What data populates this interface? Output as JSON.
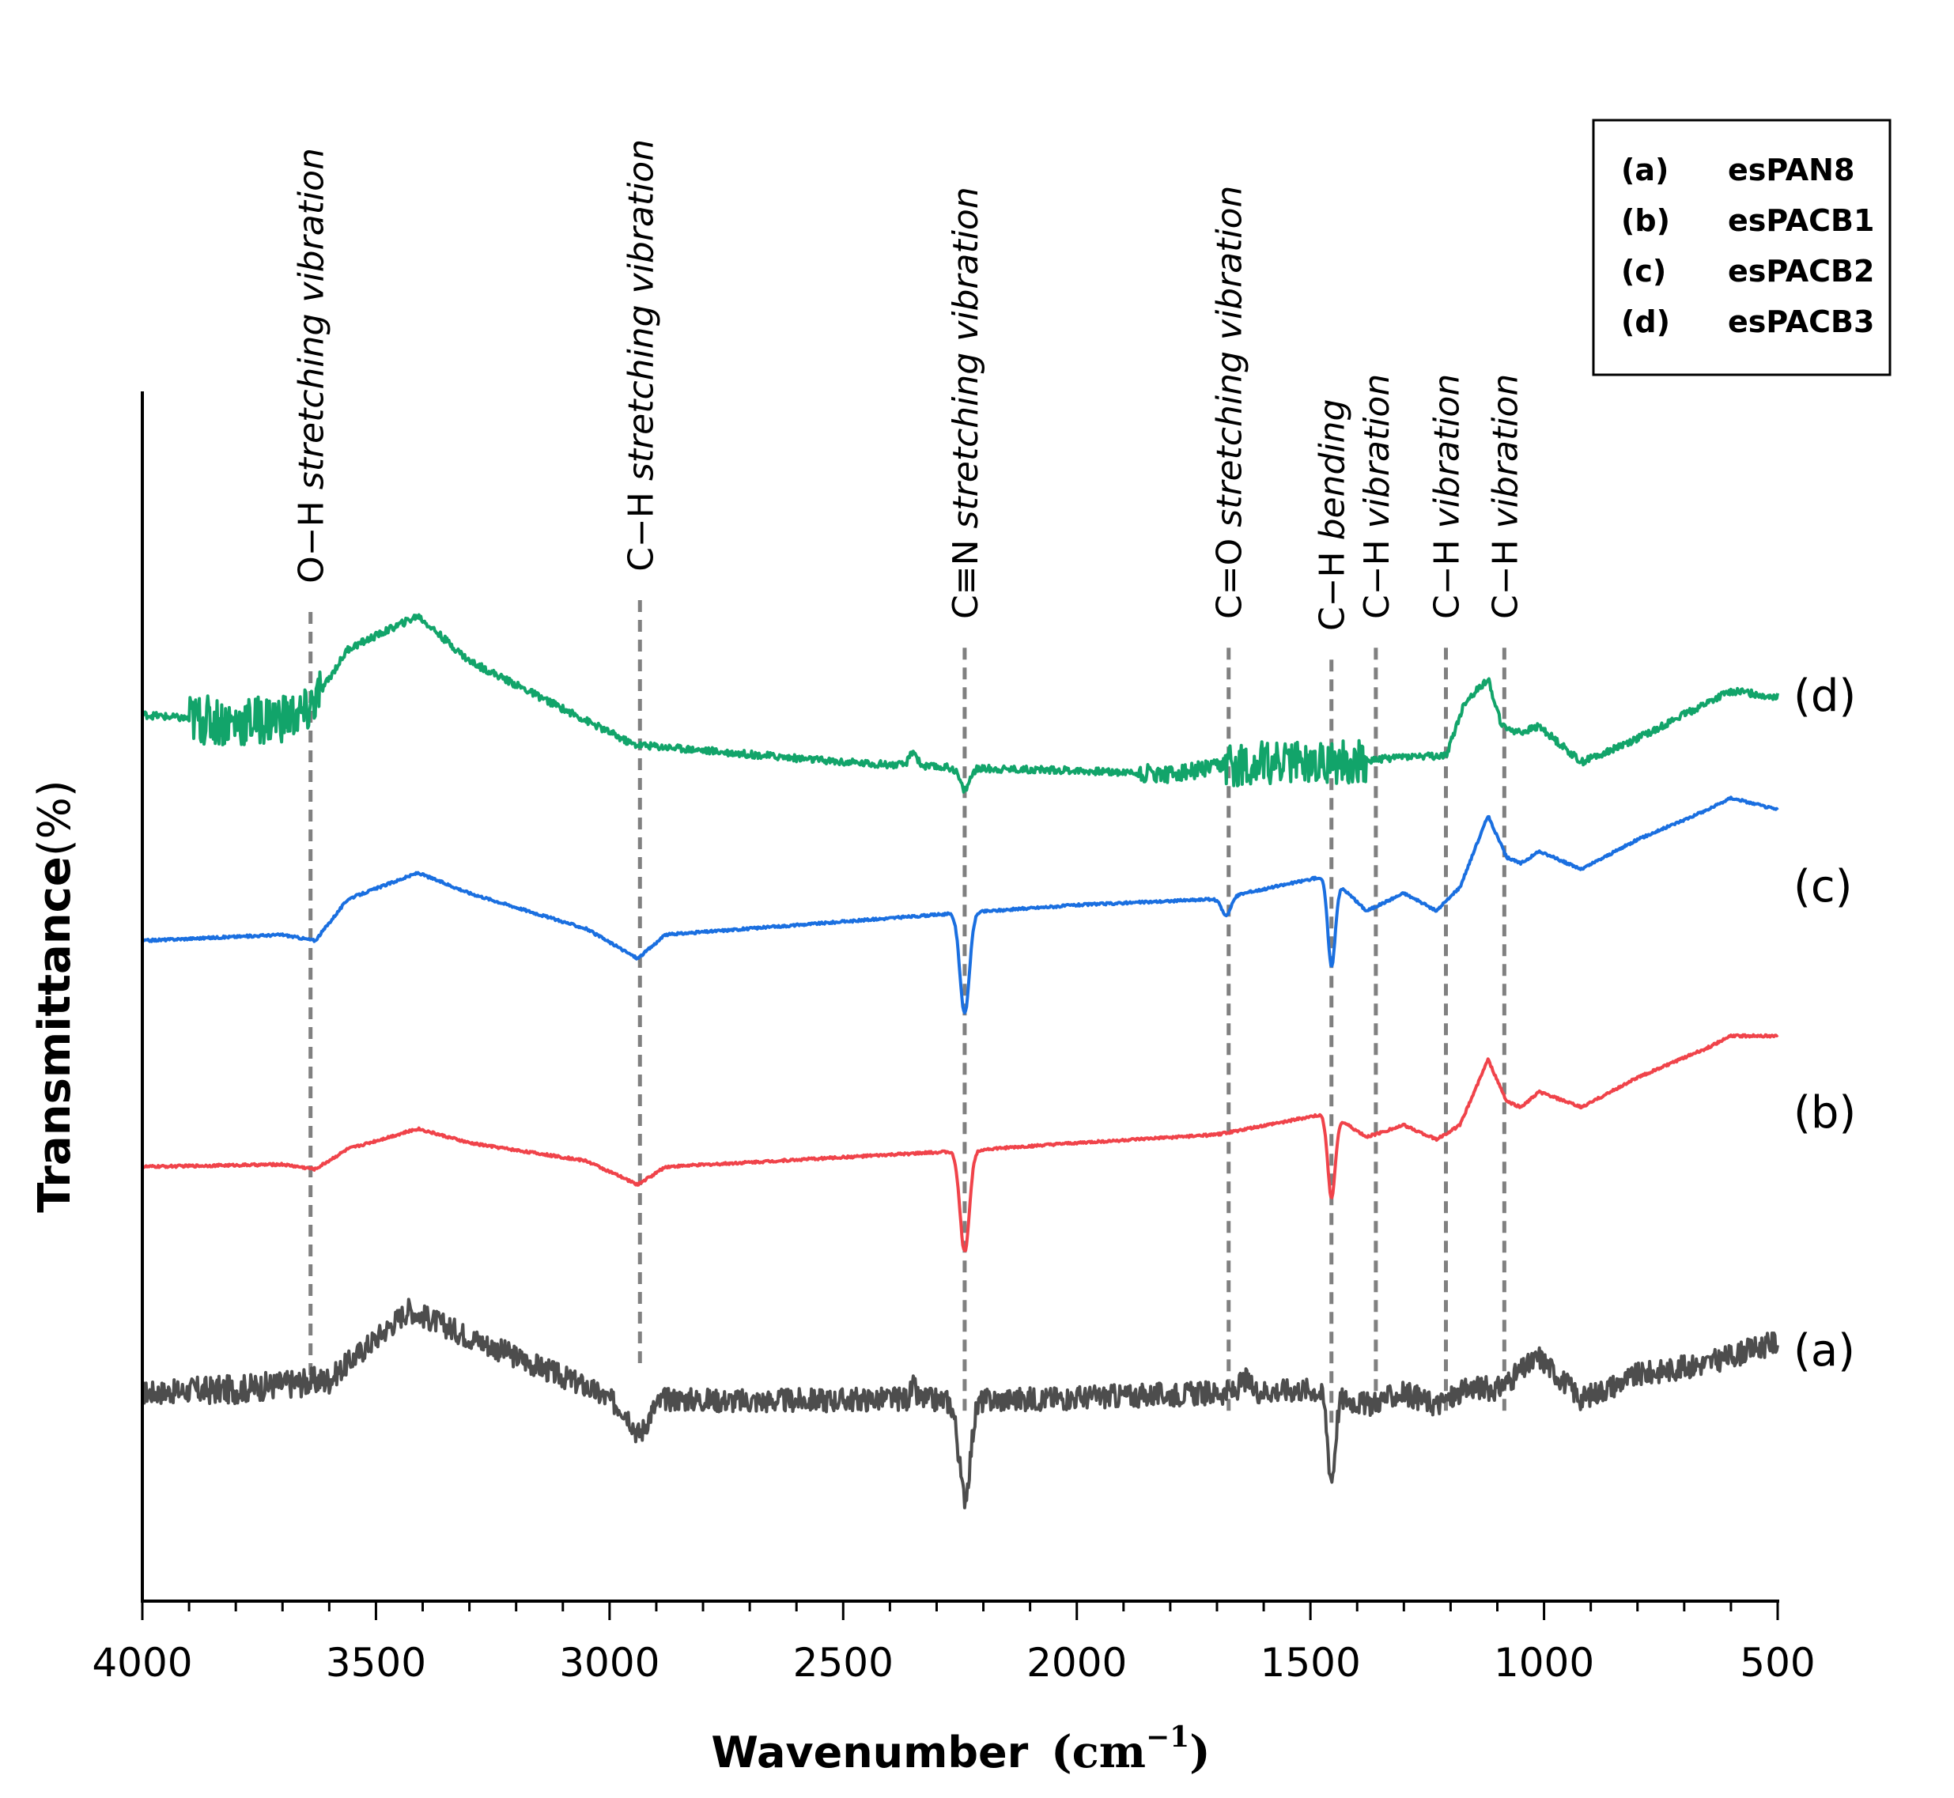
{
  "chart_data": {
    "type": "line",
    "title": "",
    "xlabel": "Wavenumber",
    "xlabel_unit_base": "cm",
    "xlabel_unit_exp": "−1",
    "ylabel": "Transmittance",
    "ylabel_unit": "(%)",
    "xlim": [
      4000,
      500
    ],
    "xticks": [
      4000,
      3500,
      3000,
      2500,
      2000,
      1500,
      1000,
      500
    ],
    "ylim": [
      0,
      1
    ],
    "grid": false,
    "legend_position": "top-right",
    "legend": [
      {
        "key": "(a)",
        "name": "esPAN8"
      },
      {
        "key": "(b)",
        "name": "esPACB1"
      },
      {
        "key": "(c)",
        "name": "esPACB2"
      },
      {
        "key": "(d)",
        "name": "esPACB3"
      }
    ],
    "series": [
      {
        "name": "esPAN8",
        "tag": "(a)",
        "color": "#4d4d4d",
        "baseline": 0.175,
        "noise": 0.01,
        "noise_bands": [
          [
            3900,
            3600,
            1.2
          ],
          [
            1700,
            1450,
            1.0
          ]
        ],
        "points": [
          [
            4000,
            0.175
          ],
          [
            3800,
            0.178
          ],
          [
            3600,
            0.186
          ],
          [
            3430,
            0.245
          ],
          [
            3300,
            0.222
          ],
          [
            3050,
            0.18
          ],
          [
            2940,
            0.155
          ],
          [
            2880,
            0.17
          ],
          [
            2700,
            0.168
          ],
          [
            2360,
            0.17
          ],
          [
            2250,
            0.168
          ],
          [
            2000,
            0.171
          ],
          [
            1700,
            0.175
          ],
          [
            1500,
            0.178
          ],
          [
            1380,
            0.165
          ],
          [
            1300,
            0.175
          ],
          [
            1230,
            0.165
          ],
          [
            1150,
            0.18
          ],
          [
            1100,
            0.178
          ],
          [
            1010,
            0.205
          ],
          [
            920,
            0.17
          ],
          [
            800,
            0.19
          ],
          [
            650,
            0.2
          ],
          [
            500,
            0.218
          ]
        ],
        "peaks": [
          [
            2240,
            -0.08,
            12
          ],
          [
            1455,
            -0.07,
            8
          ],
          [
            2935,
            -0.015,
            15
          ],
          [
            2350,
            0.01,
            5
          ],
          [
            1640,
            0.01,
            10
          ]
        ]
      },
      {
        "name": "esPACB1",
        "tag": "(b)",
        "color": "#f0434a",
        "baseline": 0.365,
        "noise": 0.001,
        "noise_bands": [],
        "points": [
          [
            4000,
            0.365
          ],
          [
            3700,
            0.367
          ],
          [
            3630,
            0.363
          ],
          [
            3560,
            0.38
          ],
          [
            3410,
            0.397
          ],
          [
            3300,
            0.385
          ],
          [
            3050,
            0.37
          ],
          [
            2940,
            0.35
          ],
          [
            2880,
            0.365
          ],
          [
            2260,
            0.378
          ],
          [
            2000,
            0.385
          ],
          [
            1700,
            0.392
          ],
          [
            1460,
            0.41
          ],
          [
            1380,
            0.39
          ],
          [
            1300,
            0.4
          ],
          [
            1230,
            0.388
          ],
          [
            1180,
            0.4
          ],
          [
            1120,
            0.455
          ],
          [
            1080,
            0.42
          ],
          [
            1050,
            0.415
          ],
          [
            1010,
            0.428
          ],
          [
            920,
            0.415
          ],
          [
            800,
            0.44
          ],
          [
            650,
            0.465
          ],
          [
            600,
            0.475
          ],
          [
            500,
            0.475
          ]
        ],
        "peaks": [
          [
            2240,
            -0.085,
            10
          ],
          [
            1455,
            -0.07,
            8
          ]
        ]
      },
      {
        "name": "esPACB2",
        "tag": "(c)",
        "color": "#1a6fe0",
        "baseline": 0.555,
        "noise": 0.001,
        "noise_bands": [],
        "points": [
          [
            4000,
            0.555
          ],
          [
            3700,
            0.56
          ],
          [
            3630,
            0.555
          ],
          [
            3560,
            0.59
          ],
          [
            3410,
            0.612
          ],
          [
            3300,
            0.595
          ],
          [
            3050,
            0.565
          ],
          [
            2940,
            0.54
          ],
          [
            2880,
            0.56
          ],
          [
            2260,
            0.578
          ],
          [
            2000,
            0.585
          ],
          [
            1700,
            0.59
          ],
          [
            1460,
            0.61
          ],
          [
            1380,
            0.58
          ],
          [
            1300,
            0.595
          ],
          [
            1230,
            0.58
          ],
          [
            1180,
            0.6
          ],
          [
            1120,
            0.66
          ],
          [
            1080,
            0.625
          ],
          [
            1050,
            0.62
          ],
          [
            1010,
            0.63
          ],
          [
            920,
            0.615
          ],
          [
            800,
            0.64
          ],
          [
            650,
            0.665
          ],
          [
            600,
            0.675
          ],
          [
            500,
            0.665
          ]
        ],
        "peaks": [
          [
            2240,
            -0.085,
            10
          ],
          [
            1455,
            -0.075,
            8
          ],
          [
            1680,
            -0.015,
            10
          ]
        ]
      },
      {
        "name": "esPACB3",
        "tag": "(d)",
        "color": "#12a46a",
        "baseline": 0.745,
        "noise": 0.003,
        "noise_bands": [
          [
            3900,
            3620,
            7
          ],
          [
            1690,
            1380,
            6
          ],
          [
            1870,
            1690,
            2.5
          ]
        ],
        "points": [
          [
            4000,
            0.745
          ],
          [
            3800,
            0.738
          ],
          [
            3650,
            0.745
          ],
          [
            3560,
            0.8
          ],
          [
            3410,
            0.828
          ],
          [
            3300,
            0.79
          ],
          [
            3100,
            0.75
          ],
          [
            2950,
            0.72
          ],
          [
            2800,
            0.715
          ],
          [
            2500,
            0.705
          ],
          [
            2250,
            0.7
          ],
          [
            2000,
            0.698
          ],
          [
            1800,
            0.695
          ],
          [
            1700,
            0.7
          ],
          [
            1600,
            0.705
          ],
          [
            1400,
            0.705
          ],
          [
            1300,
            0.71
          ],
          [
            1210,
            0.71
          ],
          [
            1170,
            0.755
          ],
          [
            1120,
            0.775
          ],
          [
            1090,
            0.735
          ],
          [
            1050,
            0.73
          ],
          [
            1010,
            0.735
          ],
          [
            920,
            0.705
          ],
          [
            800,
            0.725
          ],
          [
            650,
            0.755
          ],
          [
            600,
            0.765
          ],
          [
            500,
            0.76
          ]
        ],
        "peaks": [
          [
            2240,
            -0.018,
            10
          ],
          [
            2350,
            0.012,
            8
          ]
        ]
      }
    ],
    "series_labels": [
      {
        "text": "(a)",
        "y": 0.21
      },
      {
        "text": "(b)",
        "y": 0.41
      },
      {
        "text": "(c)",
        "y": 0.6
      },
      {
        "text": "(d)",
        "y": 0.76
      }
    ],
    "annotations": [
      {
        "x": 3640,
        "prefix": "O−H",
        "suffix": "stretching vibration",
        "top": 0.975,
        "bottom": 0.83
      },
      {
        "x": 2935,
        "prefix": "C−H",
        "suffix": "stretching vibration",
        "top": 0.985,
        "bottom": 0.84
      },
      {
        "x": 2240,
        "prefix": "C≡N",
        "suffix": "stretching vibration",
        "top": 1.03,
        "bottom": 0.8
      },
      {
        "x": 1675,
        "prefix": "C=O",
        "suffix": "stretching vibration",
        "top": 1.025,
        "bottom": 0.8
      },
      {
        "x": 1455,
        "prefix": "C−H",
        "suffix": "bending",
        "top": 0.855,
        "bottom": 0.79
      },
      {
        "x": 1360,
        "prefix": "C−H",
        "suffix": "vibration",
        "top": 0.855,
        "bottom": 0.8
      },
      {
        "x": 1210,
        "prefix": "C−H",
        "suffix": "vibration",
        "top": 0.855,
        "bottom": 0.8
      },
      {
        "x": 1085,
        "prefix": "C−H",
        "suffix": "vibration",
        "top": 0.855,
        "bottom": 0.8
      }
    ]
  }
}
